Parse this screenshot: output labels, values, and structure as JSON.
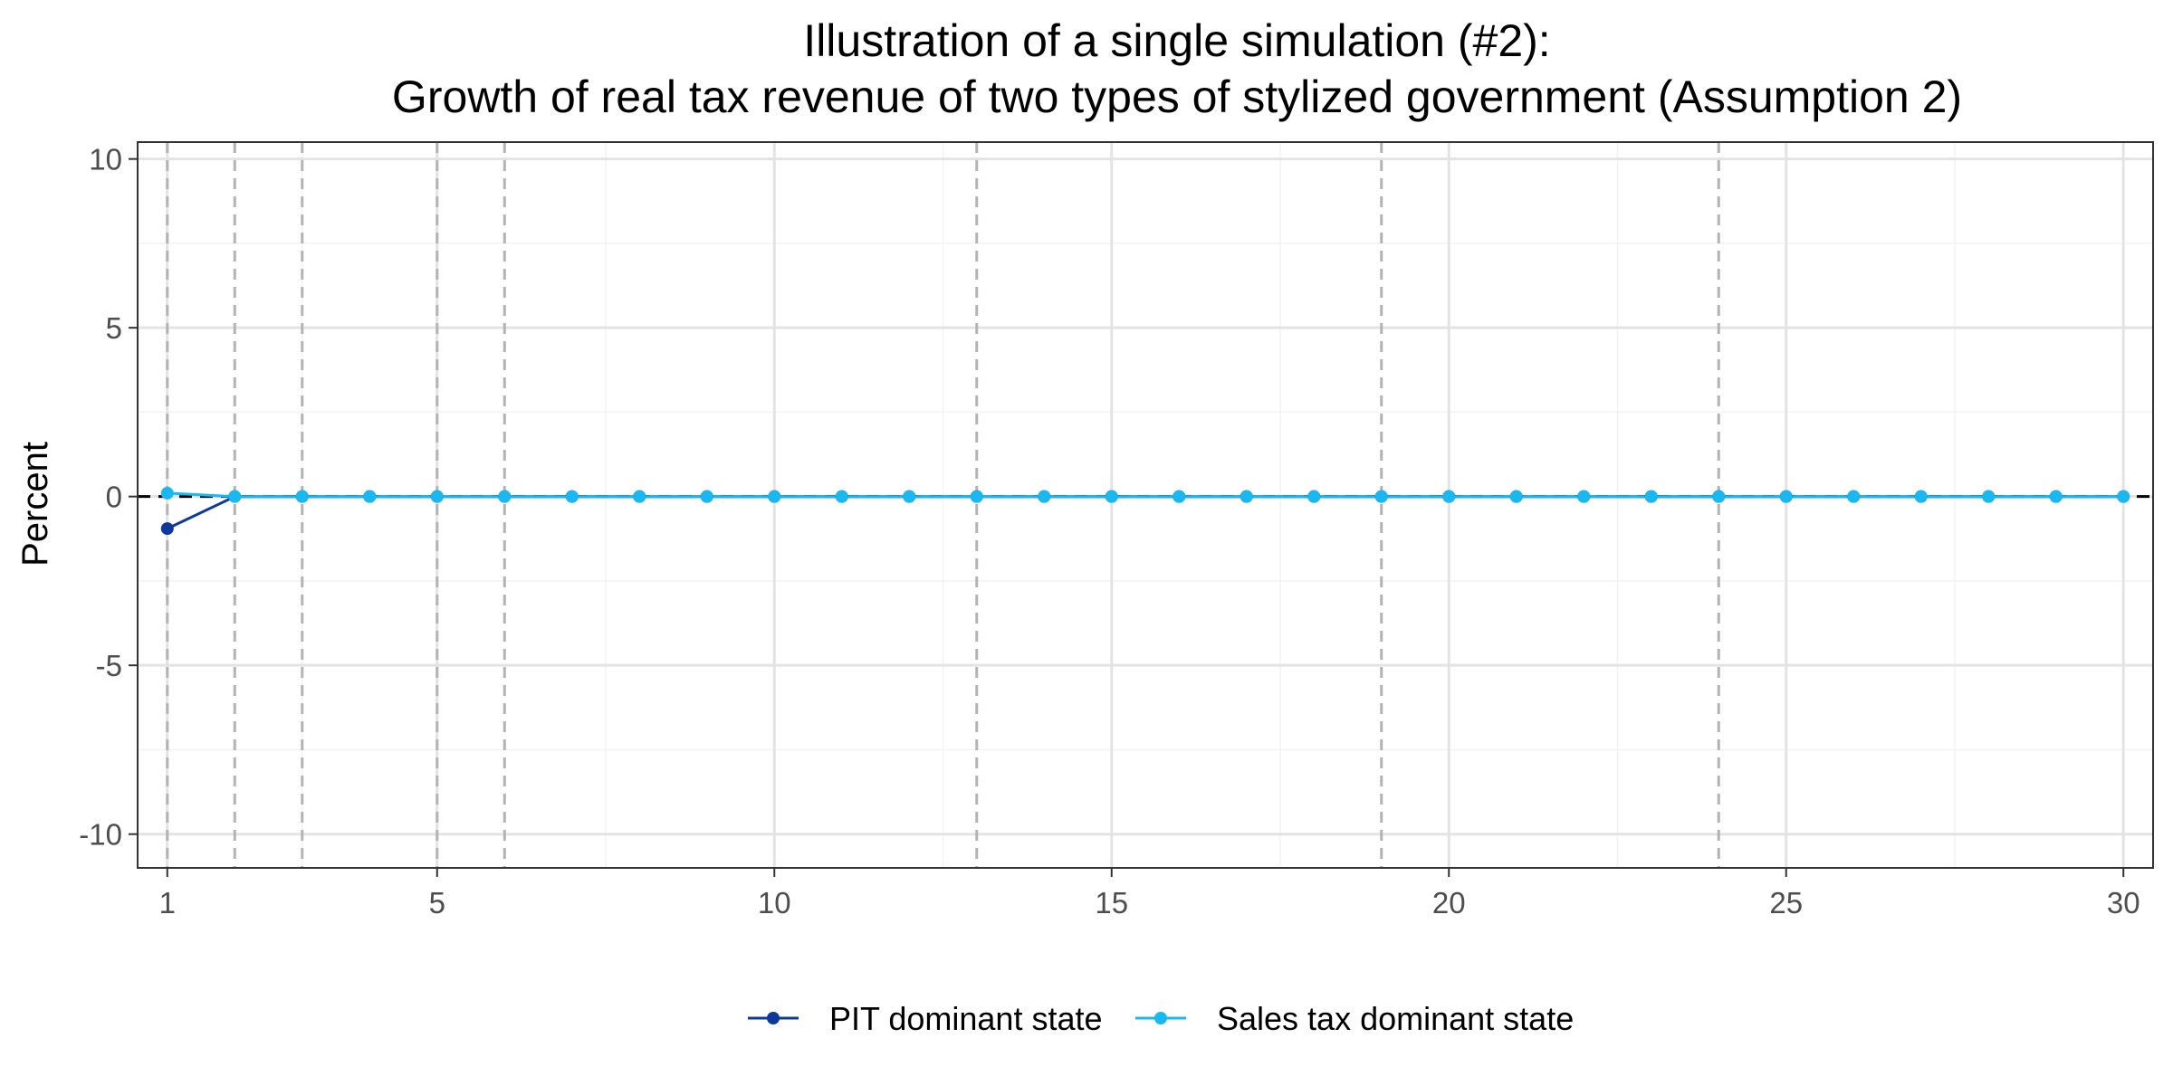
{
  "chart_data": {
    "type": "line",
    "title": "Illustration of a single simulation (#2):",
    "subtitle": "Growth of real tax revenue of two types of stylized government (Assumption 2)",
    "xlabel": "",
    "ylabel": "Percent",
    "xlim": [
      0.56,
      30.44
    ],
    "ylim": [
      -11,
      10.5
    ],
    "x_ticks": [
      1,
      5,
      10,
      15,
      20,
      25,
      30
    ],
    "y_ticks": [
      10,
      5,
      0,
      -5,
      -10
    ],
    "x_tick_labels": [
      "1",
      "5",
      "10",
      "15",
      "20",
      "25",
      "30"
    ],
    "y_tick_labels": [
      "10",
      "5",
      "0",
      "-5",
      "-10"
    ],
    "grid": true,
    "reference_line_y": 0,
    "vertical_dashed_lines_x": [
      1,
      2,
      3,
      5,
      6,
      13,
      19,
      24
    ],
    "legend_position": "bottom",
    "x": [
      1,
      2,
      3,
      4,
      5,
      6,
      7,
      8,
      9,
      10,
      11,
      12,
      13,
      14,
      15,
      16,
      17,
      18,
      19,
      20,
      21,
      22,
      23,
      24,
      25,
      26,
      27,
      28,
      29,
      30
    ],
    "series": [
      {
        "name": "PIT dominant state",
        "color": "#0d3a9a",
        "values": [
          -0.95,
          0,
          0,
          0,
          0,
          0,
          0,
          0,
          0,
          0,
          0,
          0,
          0,
          0,
          0,
          0,
          0,
          0,
          0,
          0,
          0,
          0,
          0,
          0,
          0,
          0,
          0,
          0,
          0,
          0
        ]
      },
      {
        "name": "Sales tax dominant state",
        "color": "#1ab8f0",
        "values": [
          0.1,
          0,
          0,
          0,
          0,
          0,
          0,
          0,
          0,
          0,
          0,
          0,
          0,
          0,
          0,
          0,
          0,
          0,
          0,
          0,
          0,
          0,
          0,
          0,
          0,
          0,
          0,
          0,
          0,
          0
        ]
      }
    ]
  }
}
